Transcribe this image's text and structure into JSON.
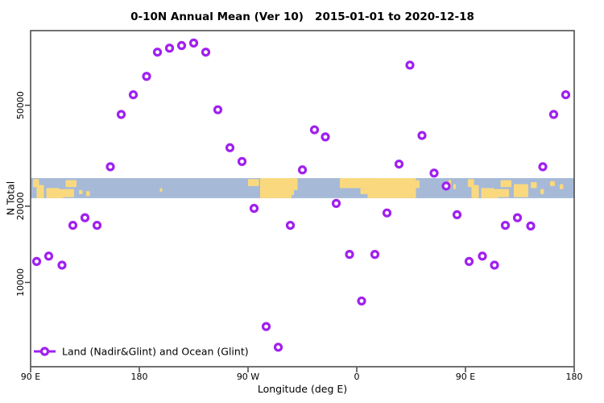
{
  "title": "0-10N Annual Mean (Ver 10)   2015-01-01 to 2020-12-18",
  "chart_data": {
    "type": "scatter",
    "title": "0-10N Annual Mean (Ver 10)   2015-01-01 to 2020-12-18",
    "xlabel": "Longitude (deg E)",
    "ylabel": "N Total",
    "y_scale": "log",
    "grid": false,
    "xlim_lon": [
      90,
      540
    ],
    "ylim": [
      4650,
      98500
    ],
    "xticks": [
      {
        "lon": 90,
        "label": "90 E"
      },
      {
        "lon": 180,
        "label": "180"
      },
      {
        "lon": 270,
        "label": "90 W"
      },
      {
        "lon": 360,
        "label": "0"
      },
      {
        "lon": 450,
        "label": "90 E"
      },
      {
        "lon": 540,
        "label": "180"
      }
    ],
    "yticks": [
      {
        "value": 10000,
        "label": "10000"
      },
      {
        "value": 20000,
        "label": "20000"
      },
      {
        "value": 50000,
        "label": "50000"
      }
    ],
    "legend": {
      "label": "Land (Nadir&Glint) and Ocean (Glint)",
      "position": "bottom-left"
    },
    "marker_color": "#A020F0",
    "points": [
      {
        "lon": 195,
        "n": 81000
      },
      {
        "lon": 205,
        "n": 84000
      },
      {
        "lon": 215,
        "n": 86000
      },
      {
        "lon": 225,
        "n": 88000
      },
      {
        "lon": 235,
        "n": 81000
      },
      {
        "lon": 186,
        "n": 65000
      },
      {
        "lon": 175,
        "n": 55000
      },
      {
        "lon": 165,
        "n": 46000
      },
      {
        "lon": 245,
        "n": 48000
      },
      {
        "lon": 255,
        "n": 34000
      },
      {
        "lon": 265,
        "n": 30000
      },
      {
        "lon": 156,
        "n": 28600
      },
      {
        "lon": 315,
        "n": 27800
      },
      {
        "lon": 404,
        "n": 72000
      },
      {
        "lon": 533,
        "n": 55000
      },
      {
        "lon": 523,
        "n": 46000
      },
      {
        "lon": 325,
        "n": 40000
      },
      {
        "lon": 334,
        "n": 37500
      },
      {
        "lon": 414,
        "n": 38000
      },
      {
        "lon": 395,
        "n": 29300
      },
      {
        "lon": 514,
        "n": 28600
      },
      {
        "lon": 424,
        "n": 27000
      },
      {
        "lon": 434,
        "n": 24000
      },
      {
        "lon": 343,
        "n": 20500
      },
      {
        "lon": 385,
        "n": 18800
      },
      {
        "lon": 443,
        "n": 18500
      },
      {
        "lon": 493,
        "n": 18000
      },
      {
        "lon": 483,
        "n": 16800
      },
      {
        "lon": 504,
        "n": 16700
      },
      {
        "lon": 354,
        "n": 12900
      },
      {
        "lon": 375,
        "n": 12900
      },
      {
        "lon": 453,
        "n": 12100
      },
      {
        "lon": 464,
        "n": 12700
      },
      {
        "lon": 474,
        "n": 11700
      },
      {
        "lon": 364,
        "n": 8450
      },
      {
        "lon": 275,
        "n": 19600
      },
      {
        "lon": 305,
        "n": 16800
      },
      {
        "lon": 135,
        "n": 18000
      },
      {
        "lon": 125,
        "n": 16800
      },
      {
        "lon": 145,
        "n": 16800
      },
      {
        "lon": 105,
        "n": 12700
      },
      {
        "lon": 95,
        "n": 12100
      },
      {
        "lon": 116,
        "n": 11700
      },
      {
        "lon": 285,
        "n": 6700
      },
      {
        "lon": 295,
        "n": 5550
      }
    ],
    "map_band": {
      "ocean_color": "#A6BAD8",
      "land_color": "#FAD97E",
      "n_top": 25800,
      "n_bottom": 21500,
      "land_patches": [
        {
          "lon": [
            92,
            97
          ],
          "f": [
            0.05,
            0.45
          ]
        },
        {
          "lon": [
            95,
            101
          ],
          "f": [
            0.35,
            1.0
          ]
        },
        {
          "lon": [
            103,
            114
          ],
          "f": [
            0.5,
            1.0
          ]
        },
        {
          "lon": [
            109,
            117
          ],
          "f": [
            0.75,
            1.0
          ]
        },
        {
          "lon": [
            119,
            128
          ],
          "f": [
            0.1,
            0.45
          ]
        },
        {
          "lon": [
            114,
            126
          ],
          "f": [
            0.55,
            0.95
          ]
        },
        {
          "lon": [
            130,
            133
          ],
          "f": [
            0.6,
            0.8
          ]
        },
        {
          "lon": [
            136,
            139
          ],
          "f": [
            0.65,
            0.9
          ]
        },
        {
          "lon": [
            197,
            199
          ],
          "f": [
            0.5,
            0.68
          ]
        },
        {
          "lon": [
            270,
            279
          ],
          "f": [
            0.05,
            0.4
          ]
        },
        {
          "lon": [
            280,
            306
          ],
          "f": [
            0.0,
            1.0
          ]
        },
        {
          "lon": [
            306,
            311
          ],
          "f": [
            0.0,
            0.6
          ]
        },
        {
          "lon": [
            302,
            308
          ],
          "f": [
            0.6,
            0.85
          ]
        },
        {
          "lon": [
            346,
            369
          ],
          "f": [
            0.0,
            0.5
          ]
        },
        {
          "lon": [
            369,
            409
          ],
          "f": [
            0.0,
            1.0
          ]
        },
        {
          "lon": [
            363,
            369
          ],
          "f": [
            0.5,
            0.8
          ]
        },
        {
          "lon": [
            409,
            412
          ],
          "f": [
            0.1,
            0.5
          ]
        },
        {
          "lon": [
            436,
            438
          ],
          "f": [
            0.08,
            0.5
          ]
        },
        {
          "lon": [
            440,
            442
          ],
          "f": [
            0.3,
            0.55
          ]
        },
        {
          "lon": [
            452,
            457
          ],
          "f": [
            0.05,
            0.45
          ]
        },
        {
          "lon": [
            455,
            461
          ],
          "f": [
            0.35,
            1.0
          ]
        },
        {
          "lon": [
            463,
            474
          ],
          "f": [
            0.5,
            1.0
          ]
        },
        {
          "lon": [
            469,
            477
          ],
          "f": [
            0.75,
            1.0
          ]
        },
        {
          "lon": [
            479,
            488
          ],
          "f": [
            0.1,
            0.45
          ]
        },
        {
          "lon": [
            474,
            486
          ],
          "f": [
            0.55,
            0.95
          ]
        },
        {
          "lon": [
            490,
            502
          ],
          "f": [
            0.3,
            0.95
          ]
        },
        {
          "lon": [
            504,
            509
          ],
          "f": [
            0.2,
            0.5
          ]
        },
        {
          "lon": [
            512,
            515
          ],
          "f": [
            0.55,
            0.8
          ]
        },
        {
          "lon": [
            520,
            524
          ],
          "f": [
            0.15,
            0.4
          ]
        },
        {
          "lon": [
            528,
            531
          ],
          "f": [
            0.3,
            0.55
          ]
        }
      ]
    }
  }
}
